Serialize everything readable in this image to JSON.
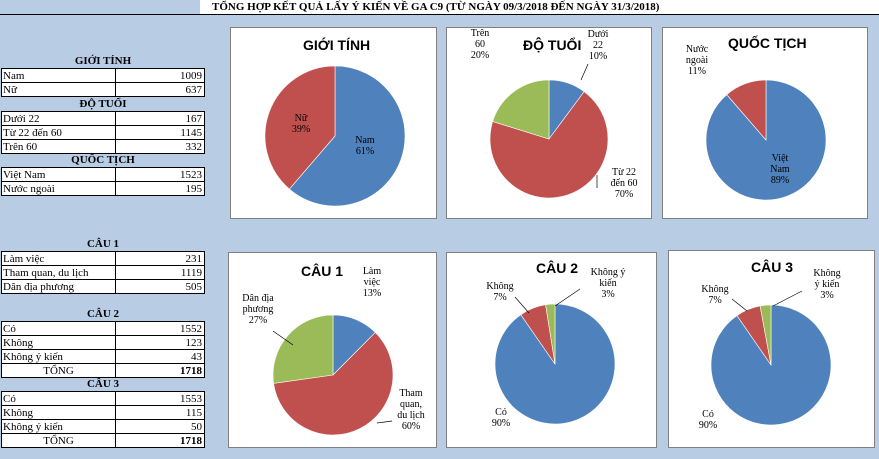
{
  "title": "TỔNG HỢP KẾT QUẢ LẤY Ý KIẾN VỀ GA C9 (TỪ NGÀY 09/3/2018 ĐẾN NGÀY 31/3/2018)",
  "tables": [
    {
      "heading": "GIỚI TÍNH",
      "rows": [
        {
          "label": "Nam",
          "value": "1009"
        },
        {
          "label": "Nữ",
          "value": "637"
        }
      ]
    },
    {
      "heading": "ĐỘ TUỔI",
      "rows": [
        {
          "label": "Dưới 22",
          "value": "167"
        },
        {
          "label": "Từ 22 đến 60",
          "value": "1145"
        },
        {
          "label": "Trên 60",
          "value": "332"
        }
      ]
    },
    {
      "heading": "QUỐC TỊCH",
      "rows": [
        {
          "label": "Việt Nam",
          "value": "1523"
        },
        {
          "label": "Nước ngoài",
          "value": "195"
        }
      ]
    },
    {
      "heading": "CÂU 1",
      "rows": [
        {
          "label": "Làm việc",
          "value": "231"
        },
        {
          "label": "Tham quan, du lịch",
          "value": "1119"
        },
        {
          "label": "Dân địa phương",
          "value": "505"
        }
      ]
    },
    {
      "heading": "CÂU 2",
      "rows": [
        {
          "label": "Có",
          "value": "1552"
        },
        {
          "label": "Không",
          "value": "123"
        },
        {
          "label": "Không ý kiến",
          "value": "43"
        },
        {
          "label": "TỔNG",
          "value": "1718",
          "total": true
        }
      ]
    },
    {
      "heading": "CÂU 3",
      "rows": [
        {
          "label": "Có",
          "value": "1553"
        },
        {
          "label": "Không",
          "value": "115"
        },
        {
          "label": "Không ý kiến",
          "value": "50"
        },
        {
          "label": "TỔNG",
          "value": "1718",
          "total": true
        }
      ]
    }
  ],
  "colors": {
    "blue": "#4f81bd",
    "red": "#c0504d",
    "green": "#9bbb59"
  },
  "chart_data": [
    {
      "type": "pie",
      "title": "GIỚI TÍNH",
      "series": [
        {
          "name": "Nam",
          "value": 1009,
          "label": [
            "Nam",
            "61%"
          ]
        },
        {
          "name": "Nữ",
          "value": 637,
          "label": [
            "Nữ",
            "39%"
          ]
        }
      ]
    },
    {
      "type": "pie",
      "title": "ĐỘ TUỔI",
      "series": [
        {
          "name": "Dưới 22",
          "value": 167,
          "label": [
            "Dưới",
            "22",
            "10%"
          ]
        },
        {
          "name": "Từ 22 đến 60",
          "value": 1145,
          "label": [
            "Từ 22",
            "đến 60",
            "70%"
          ]
        },
        {
          "name": "Trên 60",
          "value": 332,
          "label": [
            "Trên",
            "60",
            "20%"
          ]
        }
      ]
    },
    {
      "type": "pie",
      "title": "QUỐC TỊCH",
      "series": [
        {
          "name": "Việt Nam",
          "value": 1523,
          "label": [
            "Việt",
            "Nam",
            "89%"
          ]
        },
        {
          "name": "Nước ngoài",
          "value": 195,
          "label": [
            "Nước",
            "ngoài",
            "11%"
          ]
        }
      ]
    },
    {
      "type": "pie",
      "title": "CÂU 1",
      "series": [
        {
          "name": "Làm việc",
          "value": 231,
          "label": [
            "Làm",
            "việc",
            "13%"
          ]
        },
        {
          "name": "Tham quan, du lịch",
          "value": 1119,
          "label": [
            "Tham",
            "quan,",
            "du lịch",
            "60%"
          ]
        },
        {
          "name": "Dân địa phương",
          "value": 505,
          "label": [
            "Dân địa",
            "phương",
            "27%"
          ]
        }
      ]
    },
    {
      "type": "pie",
      "title": "CÂU 2",
      "series": [
        {
          "name": "Có",
          "value": 1552,
          "label": [
            "Có",
            "90%"
          ]
        },
        {
          "name": "Không",
          "value": 123,
          "label": [
            "Không",
            "7%"
          ]
        },
        {
          "name": "Không ý kiến",
          "value": 43,
          "label": [
            "Không ý",
            "kiến",
            "3%"
          ]
        }
      ]
    },
    {
      "type": "pie",
      "title": "CÂU 3",
      "series": [
        {
          "name": "Có",
          "value": 1553,
          "label": [
            "Có",
            "90%"
          ]
        },
        {
          "name": "Không",
          "value": 115,
          "label": [
            "Không",
            "7%"
          ]
        },
        {
          "name": "Không ý kiến",
          "value": 50,
          "label": [
            "Không",
            "ý kiến",
            "3%"
          ]
        }
      ]
    }
  ]
}
